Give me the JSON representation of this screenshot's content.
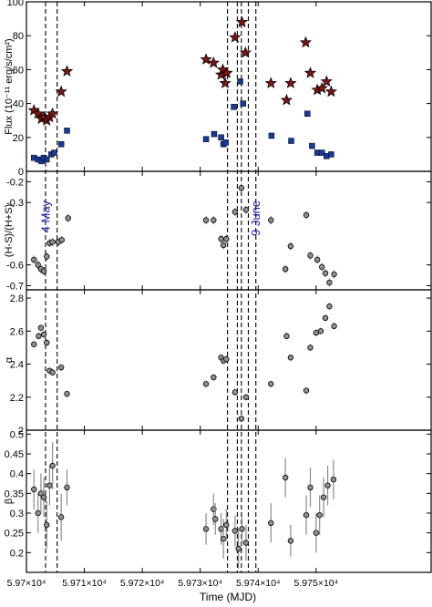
{
  "figure": {
    "xlabel": "Time (MJD)",
    "xlim": [
      59700,
      59770
    ],
    "xticks": [
      59700,
      59710,
      59720,
      59730,
      59740,
      59750
    ],
    "xtick_labels": [
      "5.97×10⁴",
      "5.971×10⁴",
      "5.972×10⁴",
      "5.973×10⁴",
      "5.974×10⁴",
      "5.975×10⁴"
    ],
    "vlines": [
      59703.3,
      59705.3,
      59734.7,
      59736.4,
      59737.1,
      59738.3,
      59739.6
    ],
    "annotations": [
      {
        "text": "4 May",
        "x": 59704.0,
        "y": -0.29,
        "panel": 1,
        "color": "#1a1ab8"
      },
      {
        "text": "9 June",
        "x": 59740.3,
        "y": -0.29,
        "panel": 1,
        "color": "#1a1ab8"
      }
    ]
  },
  "chart_data": [
    {
      "type": "scatter",
      "ylabel": "Flux (10⁻¹¹ erg/s/cm²)",
      "ylim": [
        0,
        100
      ],
      "yticks": [
        0,
        20,
        40,
        60,
        80,
        100
      ],
      "ytick_labels": [
        "0",
        "20",
        "40",
        "60",
        "80",
        "100"
      ],
      "series": [
        {
          "marker": "star",
          "color": "#7a1515",
          "points": [
            [
              59701.3,
              36
            ],
            [
              59702.0,
              34
            ],
            [
              59702.6,
              31
            ],
            [
              59703.0,
              32
            ],
            [
              59703.5,
              30
            ],
            [
              59704.0,
              32
            ],
            [
              59704.5,
              34
            ],
            [
              59706.0,
              47
            ],
            [
              59707.0,
              59
            ],
            [
              59731.0,
              66
            ],
            [
              59732.3,
              64
            ],
            [
              59733.6,
              57
            ],
            [
              59733.9,
              60
            ],
            [
              59734.3,
              52
            ],
            [
              59734.6,
              58
            ],
            [
              59736.0,
              79
            ],
            [
              59737.2,
              88
            ],
            [
              59737.8,
              70
            ],
            [
              59742.2,
              52
            ],
            [
              59744.9,
              42
            ],
            [
              59745.6,
              52
            ],
            [
              59748.2,
              76
            ],
            [
              59749.0,
              58
            ],
            [
              59750.2,
              48
            ],
            [
              59751.0,
              49
            ],
            [
              59751.8,
              53
            ],
            [
              59752.6,
              47
            ]
          ]
        },
        {
          "marker": "square",
          "color": "#1a3a9a",
          "points": [
            [
              59701.3,
              8
            ],
            [
              59702.0,
              7
            ],
            [
              59702.6,
              6
            ],
            [
              59703.0,
              8
            ],
            [
              59703.5,
              7
            ],
            [
              59704.3,
              10
            ],
            [
              59704.8,
              11
            ],
            [
              59706.0,
              16
            ],
            [
              59707.0,
              24
            ],
            [
              59731.0,
              19
            ],
            [
              59732.4,
              22
            ],
            [
              59733.6,
              20
            ],
            [
              59734.0,
              16
            ],
            [
              59734.4,
              17
            ],
            [
              59735.8,
              38
            ],
            [
              59736.9,
              53
            ],
            [
              59737.4,
              40
            ],
            [
              59742.3,
              21
            ],
            [
              59745.7,
              18
            ],
            [
              59748.5,
              34
            ],
            [
              59749.3,
              15
            ],
            [
              59750.2,
              11
            ],
            [
              59751.0,
              11
            ],
            [
              59751.8,
              9
            ],
            [
              59752.6,
              10
            ]
          ]
        }
      ]
    },
    {
      "type": "scatter",
      "ylabel": "(H-S)/(H+S)",
      "ylim": [
        -0.72,
        -0.15
      ],
      "yticks": [
        -0.7,
        -0.6,
        -0.3,
        -0.2
      ],
      "ytick_labels": [
        "-0.7",
        "-0.6",
        "-0.3",
        "-0.2"
      ],
      "series": [
        {
          "marker": "circle",
          "color": "#909090",
          "points": [
            [
              59701.3,
              -0.575,
              0.02
            ],
            [
              59702.0,
              -0.6,
              0.02
            ],
            [
              59702.5,
              -0.62,
              0.02
            ],
            [
              59703.0,
              -0.63,
              0.02
            ],
            [
              59703.5,
              -0.56,
              0.02
            ],
            [
              59704.0,
              -0.495,
              0.02
            ],
            [
              59704.5,
              -0.49,
              0.02
            ],
            [
              59705.5,
              -0.49,
              0.02
            ],
            [
              59706.1,
              -0.48,
              0.02
            ],
            [
              59707.2,
              -0.375,
              0.02
            ],
            [
              59731.0,
              -0.385,
              0.02
            ],
            [
              59732.3,
              -0.385,
              0.02
            ],
            [
              59733.6,
              -0.475,
              0.02
            ],
            [
              59734.0,
              -0.505,
              0.02
            ],
            [
              59734.5,
              -0.475,
              0.02
            ],
            [
              59736.0,
              -0.345,
              0.02
            ],
            [
              59737.1,
              -0.23,
              0.02
            ],
            [
              59737.9,
              -0.335,
              0.02
            ],
            [
              59742.2,
              -0.385,
              0.02
            ],
            [
              59744.7,
              -0.62,
              0.02
            ],
            [
              59745.6,
              -0.51,
              0.02
            ],
            [
              59748.3,
              -0.36,
              0.02
            ],
            [
              59749.0,
              -0.555,
              0.02
            ],
            [
              59750.2,
              -0.575,
              0.02
            ],
            [
              59751.0,
              -0.61,
              0.02
            ],
            [
              59751.6,
              -0.64,
              0.02
            ],
            [
              59752.3,
              -0.685,
              0.02
            ],
            [
              59753.1,
              -0.645,
              0.02
            ]
          ]
        }
      ]
    },
    {
      "type": "scatter",
      "ylabel": "α",
      "ylim": [
        2.0,
        2.85
      ],
      "yticks": [
        2.0,
        2.2,
        2.4,
        2.6,
        2.8
      ],
      "ytick_labels": [
        "2",
        "2.2",
        "2.4",
        "2.6",
        "2.8"
      ],
      "series": [
        {
          "marker": "circle",
          "color": "#909090",
          "points": [
            [
              59701.3,
              2.52,
              0.02
            ],
            [
              59702.1,
              2.57,
              0.02
            ],
            [
              59702.5,
              2.62,
              0.02
            ],
            [
              59703.0,
              2.58,
              0.02
            ],
            [
              59703.5,
              2.53,
              0.02
            ],
            [
              59704.0,
              2.36,
              0.02
            ],
            [
              59704.5,
              2.35,
              0.02
            ],
            [
              59706.0,
              2.38,
              0.02
            ],
            [
              59707.0,
              2.22,
              0.02
            ],
            [
              59731.0,
              2.28,
              0.02
            ],
            [
              59732.3,
              2.32,
              0.02
            ],
            [
              59733.6,
              2.44,
              0.02
            ],
            [
              59734.0,
              2.42,
              0.02
            ],
            [
              59734.5,
              2.43,
              0.02
            ],
            [
              59736.0,
              2.23,
              0.02
            ],
            [
              59737.1,
              2.07,
              0.02
            ],
            [
              59737.9,
              2.2,
              0.02
            ],
            [
              59742.2,
              2.28,
              0.02
            ],
            [
              59744.9,
              2.57,
              0.02
            ],
            [
              59745.6,
              2.44,
              0.02
            ],
            [
              59748.3,
              2.24,
              0.02
            ],
            [
              59749.0,
              2.5,
              0.02
            ],
            [
              59750.0,
              2.59,
              0.02
            ],
            [
              59750.8,
              2.6,
              0.02
            ],
            [
              59751.6,
              2.68,
              0.02
            ],
            [
              59752.3,
              2.75,
              0.02
            ],
            [
              59753.1,
              2.63,
              0.02
            ]
          ]
        }
      ]
    },
    {
      "type": "scatter",
      "ylabel": "β",
      "ylim": [
        0.15,
        0.51
      ],
      "yticks": [
        0.2,
        0.25,
        0.3,
        0.35,
        0.4,
        0.45,
        0.5
      ],
      "ytick_labels": [
        "0.2",
        "0.25",
        "0.3",
        "0.35",
        "0.4",
        "0.45",
        "0.5"
      ],
      "series": [
        {
          "marker": "circle",
          "color": "#909090",
          "points": [
            [
              59701.3,
              0.36,
              0.05
            ],
            [
              59702.0,
              0.3,
              0.05
            ],
            [
              59702.5,
              0.35,
              0.05
            ],
            [
              59703.0,
              0.34,
              0.05
            ],
            [
              59703.5,
              0.27,
              0.06
            ],
            [
              59704.0,
              0.37,
              0.05
            ],
            [
              59704.5,
              0.42,
              0.06
            ],
            [
              59706.0,
              0.29,
              0.06
            ],
            [
              59707.0,
              0.365,
              0.045
            ],
            [
              59731.0,
              0.26,
              0.04
            ],
            [
              59732.3,
              0.31,
              0.04
            ],
            [
              59732.6,
              0.285,
              0.04
            ],
            [
              59733.6,
              0.26,
              0.04
            ],
            [
              59734.0,
              0.235,
              0.05
            ],
            [
              59734.5,
              0.27,
              0.04
            ],
            [
              59736.0,
              0.255,
              0.04
            ],
            [
              59736.6,
              0.21,
              0.05
            ],
            [
              59737.2,
              0.26,
              0.04
            ],
            [
              59737.9,
              0.225,
              0.045
            ],
            [
              59742.2,
              0.275,
              0.05
            ],
            [
              59744.7,
              0.39,
              0.05
            ],
            [
              59745.6,
              0.23,
              0.04
            ],
            [
              59748.3,
              0.295,
              0.05
            ],
            [
              59749.0,
              0.365,
              0.05
            ],
            [
              59750.0,
              0.25,
              0.05
            ],
            [
              59750.6,
              0.295,
              0.05
            ],
            [
              59751.3,
              0.34,
              0.05
            ],
            [
              59752.0,
              0.37,
              0.05
            ],
            [
              59753.0,
              0.385,
              0.05
            ]
          ]
        }
      ]
    }
  ]
}
